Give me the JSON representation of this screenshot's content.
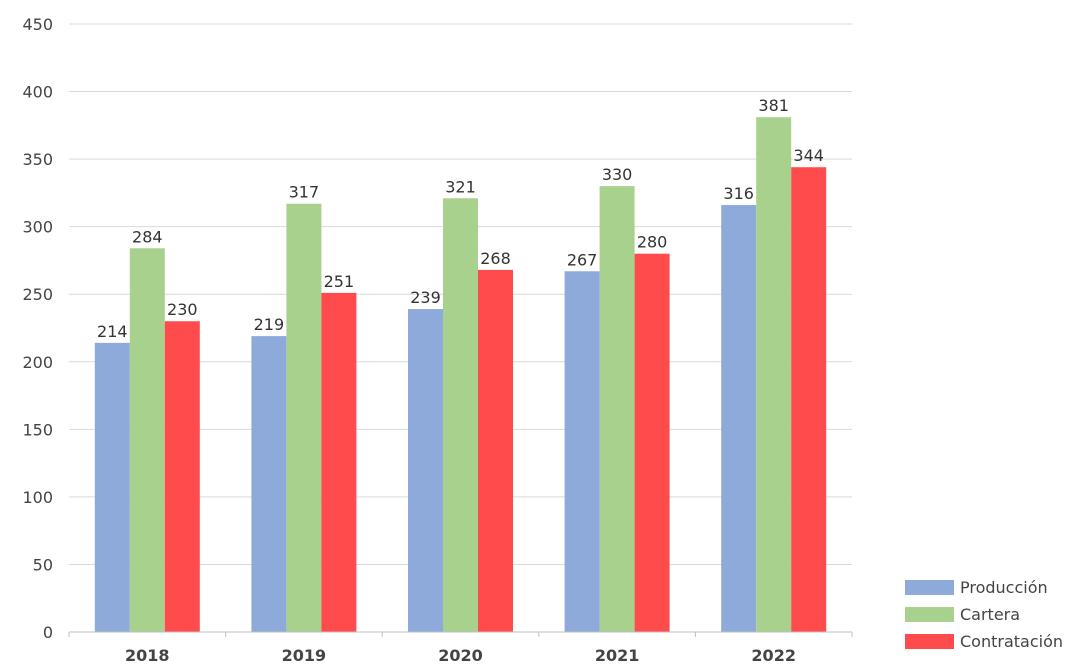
{
  "chart_data": {
    "type": "bar",
    "categories": [
      "2018",
      "2019",
      "2020",
      "2021",
      "2022"
    ],
    "series": [
      {
        "name": "Producción",
        "color": "#8eaadb",
        "values": [
          214,
          219,
          239,
          267,
          316
        ]
      },
      {
        "name": "Cartera",
        "color": "#a9d18e",
        "values": [
          284,
          317,
          321,
          330,
          381
        ]
      },
      {
        "name": "Contratación",
        "color": "#ff4b4b",
        "values": [
          230,
          251,
          268,
          280,
          344
        ]
      }
    ],
    "ylim": [
      0,
      450
    ],
    "yticks": [
      "0",
      "50",
      "100",
      "150",
      "200",
      "250",
      "300",
      "350",
      "400",
      "450"
    ],
    "grid": true,
    "legend_position": "bottom-right",
    "title": "",
    "xlabel": "",
    "ylabel": ""
  }
}
